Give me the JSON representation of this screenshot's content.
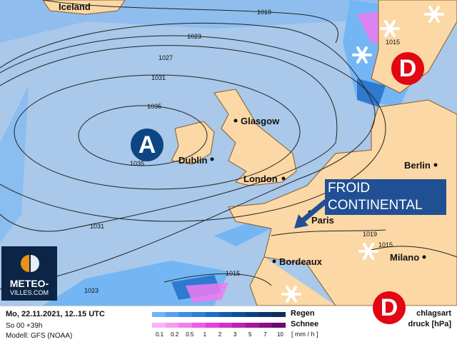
{
  "map": {
    "cities": [
      "Iceland",
      "Glasgow",
      "Dublin",
      "London",
      "Paris",
      "Bordeaux",
      "Berlin",
      "Milano"
    ],
    "isobar_labels": [
      "1019",
      "1023",
      "1027",
      "1031",
      "1035",
      "1035",
      "1031",
      "1023",
      "1015",
      "1019",
      "1015",
      "1015"
    ],
    "high_pressure": {
      "label": "A",
      "color": "#0d4585"
    },
    "low_pressure": [
      {
        "label": "D",
        "color": "#e30613"
      },
      {
        "label": "D",
        "color": "#e30613"
      }
    ],
    "annotation": {
      "line1": "FROID",
      "line2": "CONTINENTAL",
      "color": "#214f93"
    },
    "colors": {
      "sea": "#a9c8ea",
      "land": "#fbd8a5",
      "rain": "#4a9ef0",
      "snow": "#f07af0"
    }
  },
  "logo": {
    "line1": "METEO-",
    "line2": "VILLES.COM"
  },
  "legend": {
    "date": "Mo, 22.11.2021, 12..15 UTC",
    "run": "So 00 +39h",
    "model": "Modell: GFS (NOAA)",
    "rain_label": "Regen",
    "snow_label": "Schnee",
    "unit": "[ mm / h ]",
    "ticks": [
      "0.1",
      "0.2",
      "0.5",
      "1",
      "2",
      "3",
      "5",
      "7",
      "10"
    ],
    "rain_colors": [
      "#6fb4f5",
      "#52a2ef",
      "#3a90e6",
      "#2a7fd8",
      "#1d6cc5",
      "#155cb0",
      "#0f4d9a",
      "#0b3f84",
      "#0a3570",
      "#0b2e5c"
    ],
    "snow_colors": [
      "#f9b4f5",
      "#f79af2",
      "#f37fee",
      "#ef5de8",
      "#e63fe0",
      "#d52fcf",
      "#bb22b5",
      "#a0189c",
      "#850f83",
      "#6b0a6c"
    ],
    "precip_type": "chlagsart",
    "pressure": "druck [hPa]"
  }
}
